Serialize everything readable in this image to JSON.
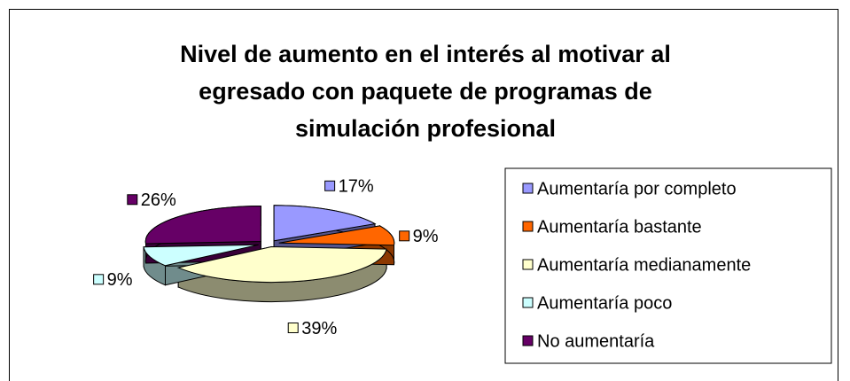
{
  "chart_data": {
    "type": "pie",
    "title": "Nivel de aumento en el interés al motivar al egresado con paquete de programas de simulación profesional",
    "categories": [
      "Aumentaría por completo",
      "Aumentaría bastante",
      "Aumentaría medianamente",
      "Aumentaría poco",
      "No aumentaría"
    ],
    "values": [
      17,
      9,
      39,
      9,
      26
    ],
    "value_labels": [
      "17%",
      "9%",
      "39%",
      "9%",
      "26%"
    ],
    "colors": [
      "#9999ff",
      "#ff6600",
      "#ffffcc",
      "#ccffff",
      "#660066"
    ],
    "legend": "right"
  }
}
